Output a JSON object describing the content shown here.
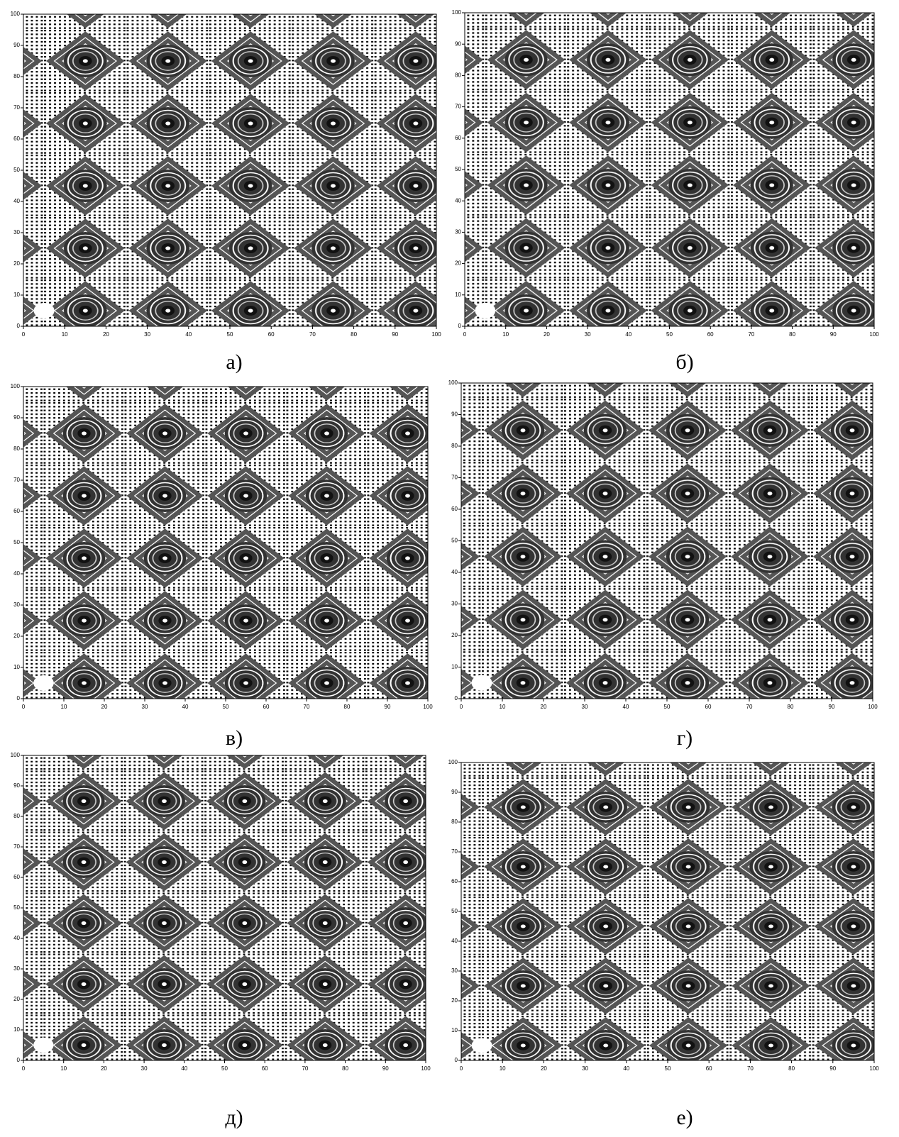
{
  "panels": [
    {
      "label": "а)",
      "xlim": [
        0,
        100
      ],
      "ylim": [
        0,
        100
      ],
      "xticks": [
        0,
        10,
        20,
        30,
        40,
        50,
        60,
        70,
        80,
        90,
        100
      ],
      "yticks": [
        0,
        10,
        20,
        30,
        40,
        50,
        60,
        70,
        80,
        90,
        100
      ]
    },
    {
      "label": "б)",
      "xlim": [
        0,
        100
      ],
      "ylim": [
        0,
        100
      ],
      "xticks": [
        0,
        10,
        20,
        30,
        40,
        50,
        60,
        70,
        80,
        90,
        100
      ],
      "yticks": [
        0,
        10,
        20,
        30,
        40,
        50,
        60,
        70,
        80,
        90,
        100
      ]
    },
    {
      "label": "в)",
      "xlim": [
        0,
        100
      ],
      "ylim": [
        0,
        100
      ],
      "xticks": [
        0,
        10,
        20,
        30,
        40,
        50,
        60,
        70,
        80,
        90,
        100
      ],
      "yticks": [
        0,
        10,
        20,
        30,
        40,
        50,
        60,
        70,
        80,
        90,
        100
      ]
    },
    {
      "label": "г)",
      "xlim": [
        0,
        100
      ],
      "ylim": [
        0,
        100
      ],
      "xticks": [
        0,
        10,
        20,
        30,
        40,
        50,
        60,
        70,
        80,
        90,
        100
      ],
      "yticks": [
        0,
        10,
        20,
        30,
        40,
        50,
        60,
        70,
        80,
        90,
        100
      ]
    },
    {
      "label": "д)",
      "xlim": [
        0,
        100
      ],
      "ylim": [
        0,
        100
      ],
      "xticks": [
        0,
        10,
        20,
        30,
        40,
        50,
        60,
        70,
        80,
        90,
        100
      ],
      "yticks": [
        0,
        10,
        20,
        30,
        40,
        50,
        60,
        70,
        80,
        90,
        100
      ]
    },
    {
      "label": "е)",
      "xlim": [
        0,
        100
      ],
      "ylim": [
        0,
        100
      ],
      "xticks": [
        0,
        10,
        20,
        30,
        40,
        50,
        60,
        70,
        80,
        90,
        100
      ],
      "yticks": [
        0,
        10,
        20,
        30,
        40,
        50,
        60,
        70,
        80,
        90,
        100
      ]
    }
  ]
}
